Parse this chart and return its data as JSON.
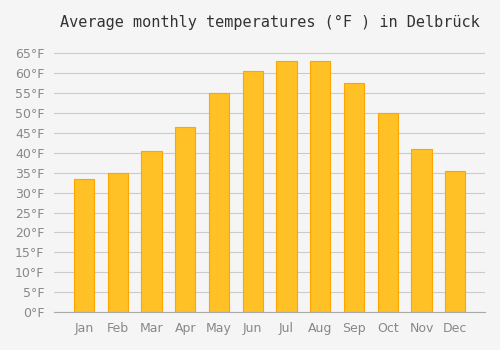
{
  "title": "Average monthly temperatures (°F ) in Delbrück",
  "months": [
    "Jan",
    "Feb",
    "Mar",
    "Apr",
    "May",
    "Jun",
    "Jul",
    "Aug",
    "Sep",
    "Oct",
    "Nov",
    "Dec"
  ],
  "values": [
    33.5,
    35.0,
    40.5,
    46.5,
    55.0,
    60.5,
    63.0,
    63.0,
    57.5,
    50.0,
    41.0,
    35.5
  ],
  "bar_color": "#FFC125",
  "bar_edge_color": "#FFA500",
  "background_color": "#F5F5F5",
  "grid_color": "#CCCCCC",
  "ylim": [
    0,
    68
  ],
  "yticks": [
    0,
    5,
    10,
    15,
    20,
    25,
    30,
    35,
    40,
    45,
    50,
    55,
    60,
    65
  ],
  "title_fontsize": 11,
  "tick_fontsize": 9,
  "tick_color": "#888888"
}
